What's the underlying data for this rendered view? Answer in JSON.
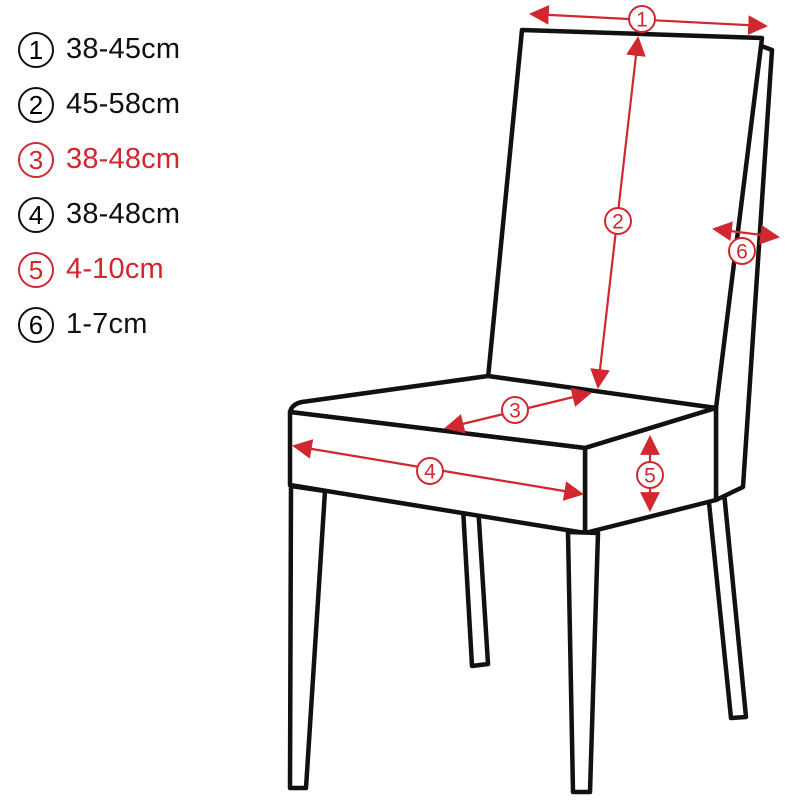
{
  "legend": [
    {
      "num": "1",
      "value": "38-45cm",
      "color": "#111111"
    },
    {
      "num": "2",
      "value": "45-58cm",
      "color": "#111111"
    },
    {
      "num": "3",
      "value": "38-48cm",
      "color": "#d0282e"
    },
    {
      "num": "4",
      "value": "38-48cm",
      "color": "#111111"
    },
    {
      "num": "5",
      "value": "4-10cm",
      "color": "#d0282e"
    },
    {
      "num": "6",
      "value": "1-7cm",
      "color": "#111111"
    }
  ],
  "markers": {
    "m1": "1",
    "m2": "2",
    "m3": "3",
    "m4": "4",
    "m5": "5",
    "m6": "6"
  },
  "colors": {
    "outline": "#111111",
    "dimension": "#d0282e"
  }
}
